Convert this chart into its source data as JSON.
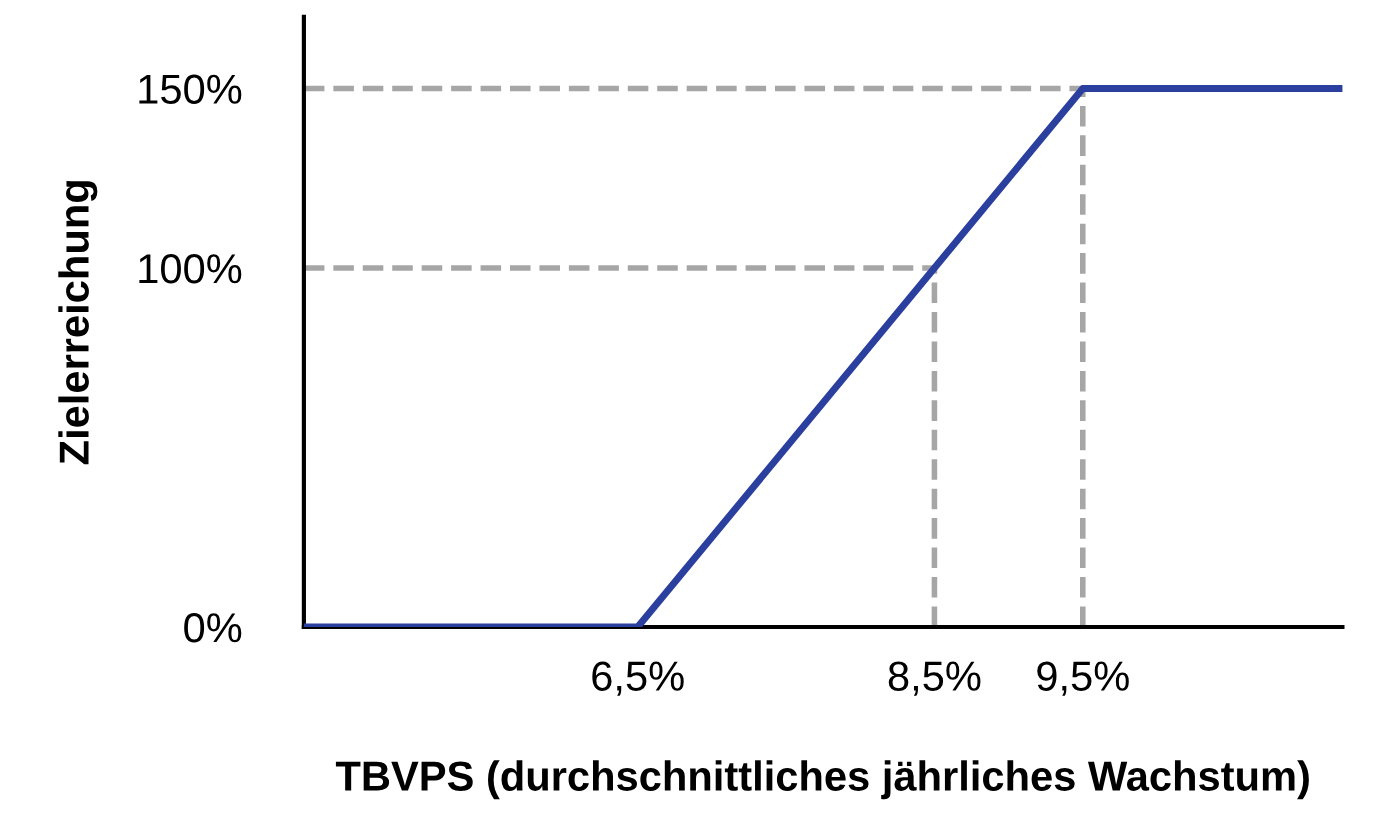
{
  "chart_data": {
    "type": "line",
    "xlabel": "TBVPS (durchschnittliches jährliches Wachstum)",
    "ylabel": "Zielerreichung",
    "x": [
      4.25,
      6.5,
      8.5,
      9.5,
      11.25
    ],
    "series": [
      {
        "color": "#2a3f9e",
        "values": [
          0,
          0,
          100,
          150,
          150
        ]
      }
    ],
    "xlim": [
      4.25,
      11.25
    ],
    "ylim": [
      0,
      170
    ],
    "xticks": [
      {
        "value": 6.5,
        "label": "6,5%"
      },
      {
        "value": 8.5,
        "label": "8,5%"
      },
      {
        "value": 9.5,
        "label": "9,5%"
      }
    ],
    "yticks": [
      {
        "value": 0,
        "label": "0%"
      },
      {
        "value": 100,
        "label": "100%"
      },
      {
        "value": 150,
        "label": "150%"
      }
    ],
    "ref_lines": [
      {
        "axis": "y",
        "value": 100,
        "color": "#a6a6a6",
        "line_style": "dashed"
      },
      {
        "axis": "y",
        "value": 150,
        "color": "#a6a6a6",
        "line_style": "dashed"
      },
      {
        "axis": "x",
        "value": 8.5,
        "color": "#a6a6a6",
        "line_style": "dashed"
      },
      {
        "axis": "x",
        "value": 9.5,
        "color": "#a6a6a6",
        "line_style": "dashed"
      }
    ],
    "grid": false,
    "legend": false,
    "marker": "none",
    "line_style": "solid"
  }
}
